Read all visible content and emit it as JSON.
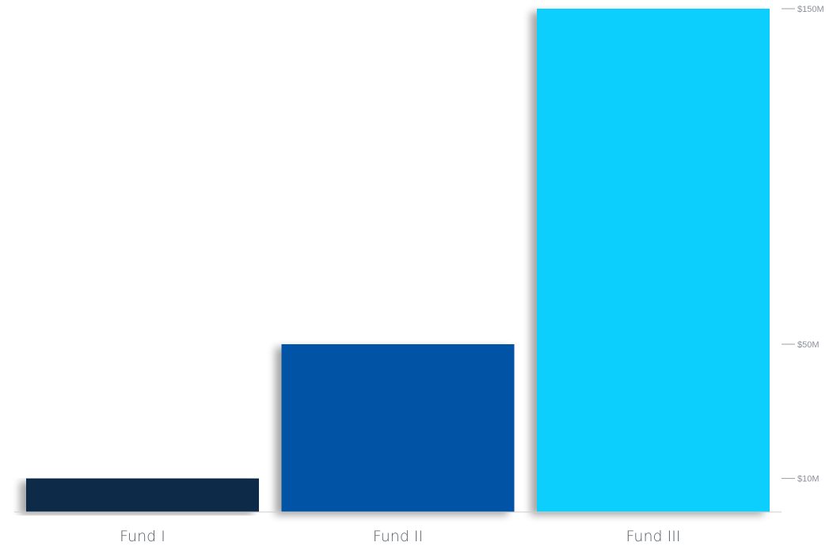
{
  "chart_data": {
    "type": "bar",
    "categories": [
      "Fund I",
      "Fund II",
      "Fund III"
    ],
    "values": [
      10,
      50,
      150
    ],
    "value_unit": "$M",
    "colors": [
      "#0a2a4a",
      "#0552a5",
      "#0bcffd"
    ],
    "axis_color": "#cccccc",
    "yaxis_position": "right",
    "yticks": [
      {
        "value": 10,
        "label": "$10M"
      },
      {
        "value": 50,
        "label": "$50M"
      },
      {
        "value": 150,
        "label": "$150M"
      }
    ],
    "grid": false,
    "legend": "none",
    "title": "",
    "xlabel": "",
    "ylabel": ""
  }
}
